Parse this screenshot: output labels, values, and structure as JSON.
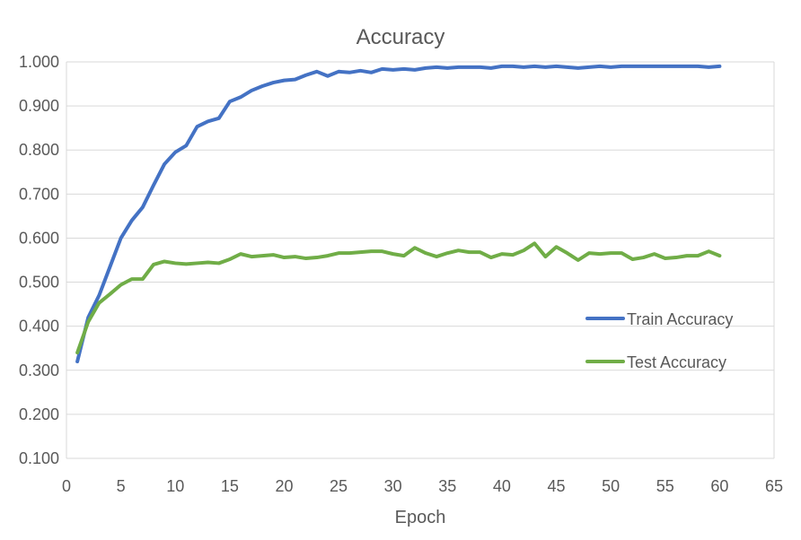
{
  "chart_data": {
    "type": "line",
    "title": "Accuracy",
    "xlabel": "Epoch",
    "ylabel": "",
    "xlim": [
      0,
      65
    ],
    "ylim": [
      0.1,
      1.0
    ],
    "x_ticks": [
      "0",
      "5",
      "10",
      "15",
      "20",
      "25",
      "30",
      "35",
      "40",
      "45",
      "50",
      "55",
      "60",
      "65"
    ],
    "y_ticks": [
      "0.100",
      "0.200",
      "0.300",
      "0.400",
      "0.500",
      "0.600",
      "0.700",
      "0.800",
      "0.900",
      "1.000"
    ],
    "grid": true,
    "legend_position": "right",
    "x": [
      1,
      2,
      3,
      4,
      5,
      6,
      7,
      8,
      9,
      10,
      11,
      12,
      13,
      14,
      15,
      16,
      17,
      18,
      19,
      20,
      21,
      22,
      23,
      24,
      25,
      26,
      27,
      28,
      29,
      30,
      31,
      32,
      33,
      34,
      35,
      36,
      37,
      38,
      39,
      40,
      41,
      42,
      43,
      44,
      45,
      46,
      47,
      48,
      49,
      50,
      51,
      52,
      53,
      54,
      55,
      56,
      57,
      58,
      59,
      60
    ],
    "series": [
      {
        "name": "Train Accuracy",
        "color": "#4472c4",
        "values": [
          0.32,
          0.42,
          0.47,
          0.535,
          0.6,
          0.64,
          0.67,
          0.72,
          0.768,
          0.795,
          0.81,
          0.853,
          0.865,
          0.872,
          0.91,
          0.92,
          0.935,
          0.945,
          0.953,
          0.958,
          0.96,
          0.97,
          0.978,
          0.968,
          0.978,
          0.976,
          0.98,
          0.976,
          0.984,
          0.982,
          0.984,
          0.982,
          0.986,
          0.988,
          0.986,
          0.988,
          0.988,
          0.988,
          0.986,
          0.99,
          0.99,
          0.988,
          0.99,
          0.988,
          0.99,
          0.988,
          0.986,
          0.988,
          0.99,
          0.988,
          0.99,
          0.99,
          0.99,
          0.99,
          0.99,
          0.99,
          0.99,
          0.99,
          0.988,
          0.99
        ]
      },
      {
        "name": "Test Accuracy",
        "color": "#70ad47",
        "values": [
          0.34,
          0.41,
          0.453,
          0.473,
          0.494,
          0.507,
          0.507,
          0.54,
          0.547,
          0.543,
          0.541,
          0.543,
          0.545,
          0.543,
          0.552,
          0.564,
          0.558,
          0.56,
          0.562,
          0.556,
          0.558,
          0.554,
          0.556,
          0.56,
          0.566,
          0.566,
          0.568,
          0.57,
          0.57,
          0.564,
          0.56,
          0.578,
          0.566,
          0.558,
          0.566,
          0.572,
          0.568,
          0.568,
          0.556,
          0.564,
          0.562,
          0.572,
          0.588,
          0.558,
          0.58,
          0.566,
          0.55,
          0.566,
          0.564,
          0.566,
          0.566,
          0.552,
          0.556,
          0.564,
          0.554,
          0.556,
          0.56,
          0.56,
          0.57,
          0.56
        ]
      }
    ]
  }
}
